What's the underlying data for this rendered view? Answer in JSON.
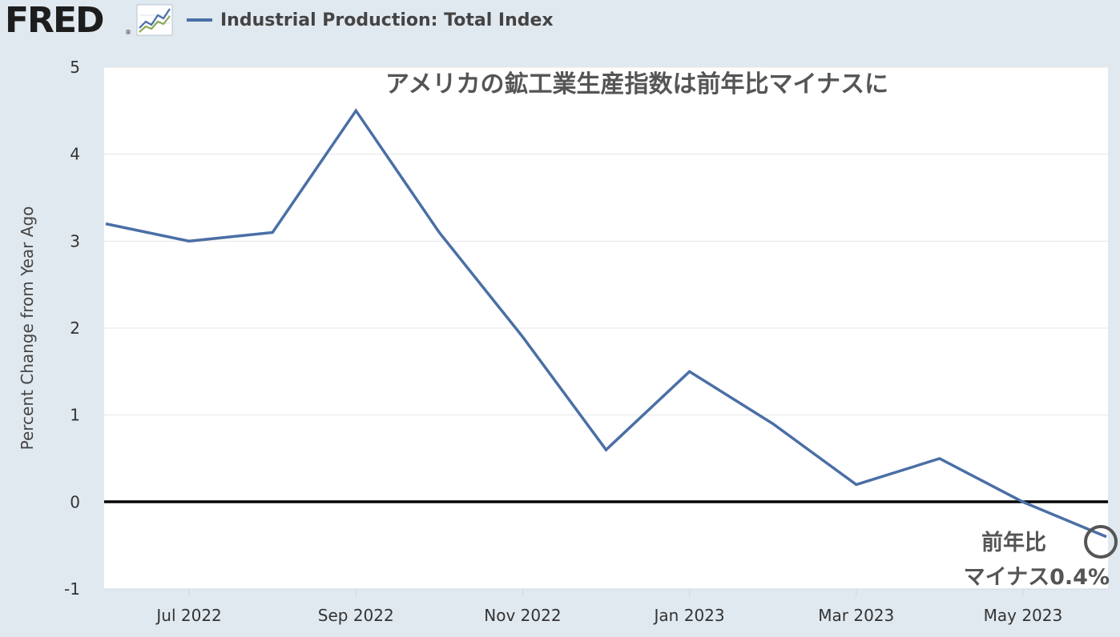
{
  "header": {
    "logo_text": "FRED",
    "logo_registered": "®",
    "series_label": "Industrial Production: Total Index",
    "series_color": "#4a6fa5"
  },
  "chart_data": {
    "type": "line",
    "title": "アメリカの鉱工業生産指数は前年比マイナスに",
    "ylabel": "Percent Change from Year Ago",
    "xlabel": "",
    "ylim": [
      -1,
      5
    ],
    "yticks": [
      -1,
      0,
      1,
      2,
      3,
      4,
      5
    ],
    "x_tick_labels": [
      "Jul 2022",
      "Sep 2022",
      "Nov 2022",
      "Jan 2023",
      "Mar 2023",
      "May 2023"
    ],
    "x": [
      "2022-06",
      "2022-07",
      "2022-08",
      "2022-09",
      "2022-10",
      "2022-11",
      "2022-12",
      "2023-01",
      "2023-02",
      "2023-03",
      "2023-04",
      "2023-05",
      "2023-06"
    ],
    "series": [
      {
        "name": "Industrial Production: Total Index",
        "color": "#4a6fa5",
        "values": [
          3.2,
          3.0,
          3.1,
          4.5,
          3.1,
          1.9,
          0.6,
          1.5,
          0.9,
          0.2,
          0.5,
          0.0,
          -0.4
        ]
      }
    ],
    "annotation": {
      "line1": "前年比",
      "line2": "マイナス0.4%"
    },
    "grid": true,
    "background": "#ffffff"
  }
}
